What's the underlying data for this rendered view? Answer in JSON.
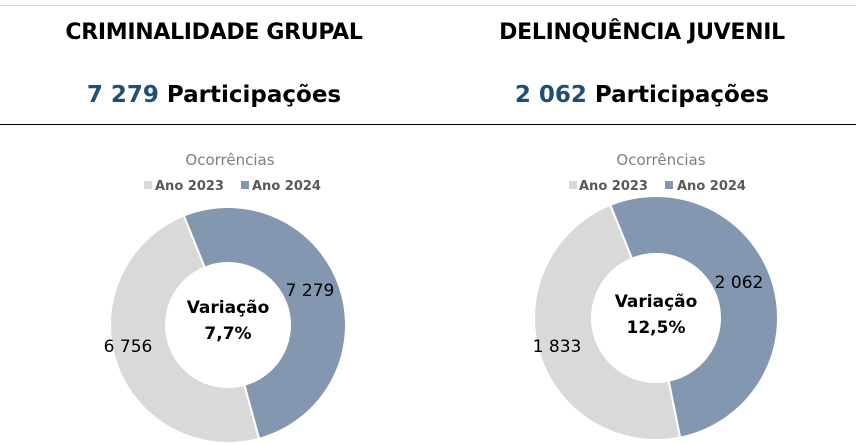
{
  "colors": {
    "ano_2023": "#d9d9d9",
    "ano_2024": "#8497b0",
    "count_number": "#1f4e79"
  },
  "panels": [
    {
      "title": "CRIMINALIDADE GRUPAL",
      "count_value": "7 279",
      "count_label": "Participações"
    },
    {
      "title": "DELINQUÊNCIA JUVENIL",
      "count_value": "2 062",
      "count_label": "Participações"
    }
  ],
  "chart_data": [
    {
      "type": "pie",
      "variant": "donut",
      "title": "Ocorrências",
      "legend_position": "top",
      "legend": [
        "Ano 2023",
        "Ano 2024"
      ],
      "categories": [
        "Ano 2023",
        "Ano 2024"
      ],
      "values": [
        6756,
        7279
      ],
      "data_labels": [
        "6 756",
        "7 279"
      ],
      "center_label": "Variação",
      "center_value": "7,7%"
    },
    {
      "type": "pie",
      "variant": "donut",
      "title": "Ocorrências",
      "legend_position": "top",
      "legend": [
        "Ano 2023",
        "Ano 2024"
      ],
      "categories": [
        "Ano 2023",
        "Ano 2024"
      ],
      "values": [
        1833,
        2062
      ],
      "data_labels": [
        "1 833",
        "2 062"
      ],
      "center_label": "Variação",
      "center_value": "12,5%"
    }
  ]
}
